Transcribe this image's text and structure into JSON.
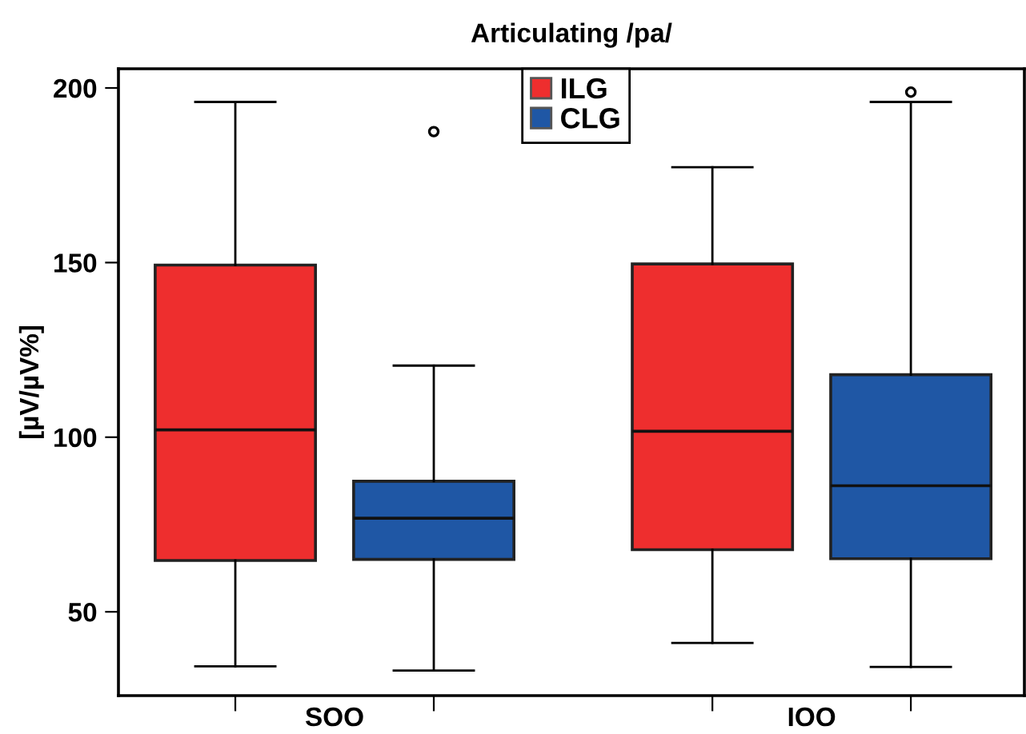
{
  "chart_data": {
    "type": "box",
    "title": "Articulating /pa/",
    "ylabel": "[µV/µV%]",
    "categories": [
      "SOO",
      "IOO"
    ],
    "ylim": [
      26,
      205.5
    ],
    "yticks": [
      50,
      100,
      150,
      200
    ],
    "grid": false,
    "legend": "top",
    "series": [
      {
        "name": "ILG",
        "color": "#ee2e2e",
        "boxes": [
          {
            "low": 34.4,
            "q1": 64.7,
            "median": 102.1,
            "q3": 149.3,
            "high": 196
          },
          {
            "low": 41.1,
            "q1": 67.8,
            "median": 101.7,
            "q3": 149.6,
            "high": 177.3
          }
        ]
      },
      {
        "name": "CLG",
        "color": "#1f57a5",
        "boxes": [
          {
            "low": 33.2,
            "q1": 65,
            "median": 76.8,
            "q3": 87.4,
            "high": 120.5,
            "outliers": [
              187.5
            ]
          },
          {
            "low": 34.2,
            "q1": 65.2,
            "median": 86.1,
            "q3": 117.9,
            "high": 196,
            "outliers": [
              198.8
            ]
          }
        ]
      }
    ]
  }
}
